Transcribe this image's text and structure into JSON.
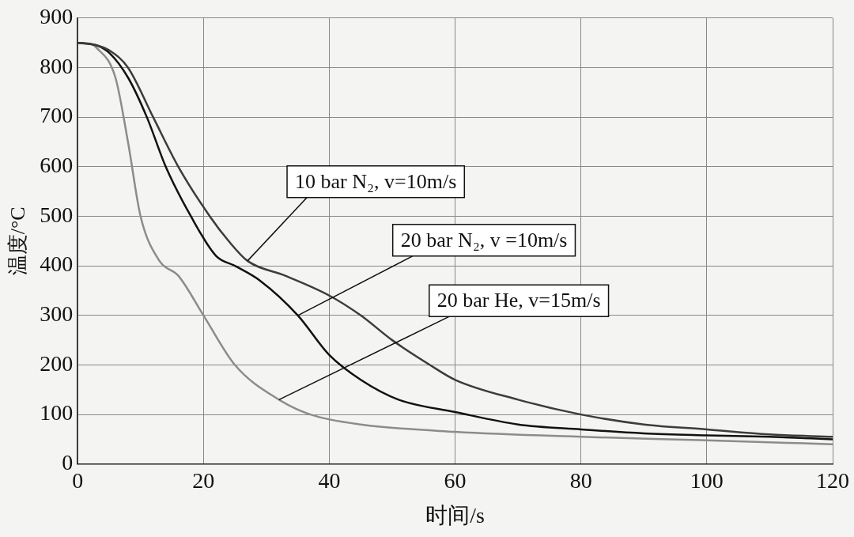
{
  "chart_data": {
    "type": "line",
    "xlabel": "时间/s",
    "ylabel": "温度/°C",
    "xlim": [
      0,
      120
    ],
    "xticks": [
      0,
      20,
      40,
      60,
      80,
      100,
      120
    ],
    "ylim": [
      0,
      900
    ],
    "yticks": [
      0,
      100,
      200,
      300,
      400,
      500,
      600,
      700,
      800,
      900
    ],
    "grid": true,
    "legend": false,
    "marker": "none",
    "line_style": "solid",
    "series": [
      {
        "color": "#3c3c3c",
        "x": [
          0,
          3,
          5,
          8,
          12,
          16,
          21,
          24,
          27,
          33,
          40,
          45,
          50,
          56,
          60,
          70,
          80,
          90,
          100,
          110,
          120
        ],
        "values": [
          850,
          845,
          835,
          800,
          700,
          600,
          500,
          450,
          410,
          380,
          340,
          300,
          250,
          200,
          170,
          130,
          100,
          80,
          70,
          60,
          55
        ]
      },
      {
        "color": "#111111",
        "x": [
          0,
          3,
          5,
          8,
          11,
          14,
          18,
          22,
          25,
          29,
          35,
          40,
          45,
          51,
          60,
          70,
          80,
          90,
          100,
          110,
          120
        ],
        "values": [
          850,
          845,
          830,
          780,
          700,
          600,
          500,
          420,
          400,
          370,
          300,
          220,
          170,
          130,
          105,
          80,
          70,
          62,
          58,
          55,
          50
        ]
      },
      {
        "color": "#8c8c8c",
        "x": [
          0,
          2,
          3,
          6,
          8,
          10,
          13,
          16,
          20,
          25,
          32,
          37,
          45,
          60,
          80,
          100,
          120
        ],
        "values": [
          850,
          848,
          840,
          780,
          650,
          500,
          410,
          380,
          300,
          200,
          130,
          100,
          80,
          65,
          55,
          48,
          40
        ]
      }
    ],
    "annotations": [
      {
        "text": "10 bar N₂, v=10m/s",
        "x": 27,
        "y": 410
      },
      {
        "text": "20 bar N₂, v =10m/s",
        "x": 35,
        "y": 300
      },
      {
        "text": "20 bar He, v=15m/s",
        "x": 32,
        "y": 130
      }
    ]
  }
}
